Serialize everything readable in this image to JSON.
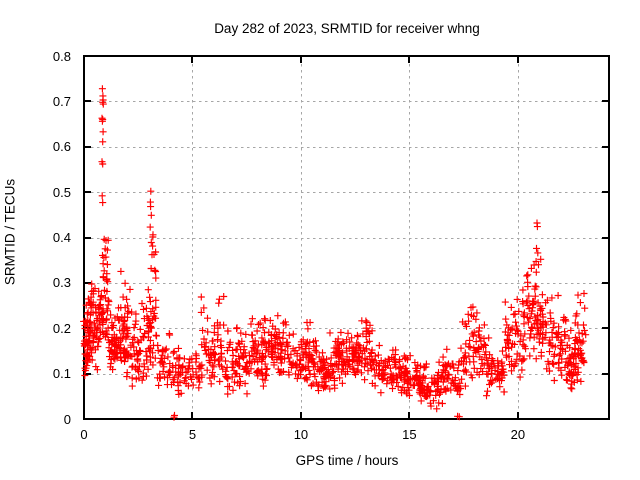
{
  "chart_data": {
    "type": "scatter",
    "title": "Day 282 of 2023, SRMTID for receiver whng",
    "xlabel": "GPS time / hours",
    "ylabel": "SRMTID / TECUs",
    "xlim": [
      0,
      24.2
    ],
    "ylim": [
      0,
      0.8
    ],
    "xticks": [
      0,
      5,
      10,
      15,
      20
    ],
    "xtick_labels": [
      "0",
      "5",
      "10",
      "15",
      "20"
    ],
    "yticks": [
      0,
      0.1,
      0.2,
      0.3,
      0.4,
      0.5,
      0.6,
      0.7,
      0.8
    ],
    "ytick_labels": [
      "0",
      "0.1",
      "0.2",
      "0.3",
      "0.4",
      "0.5",
      "0.6",
      "0.7",
      "0.8"
    ],
    "grid": true,
    "legend": "none",
    "marker": "+",
    "marker_color": "#ff0000",
    "grid_color": "#a6a6a6",
    "axis_color": "#000000",
    "background": "#ffffff",
    "seed": 7,
    "series": [
      {
        "name": "SRMTID",
        "segments": [
          {
            "x0": 0.0,
            "x1": 0.35,
            "n": 65,
            "y_min": 0.08,
            "y_mode": 0.17,
            "y_max": 0.34
          },
          {
            "x0": 0.35,
            "x1": 0.7,
            "n": 40,
            "y_min": 0.1,
            "y_mode": 0.17,
            "y_max": 0.31
          },
          {
            "x0": 0.7,
            "x1": 1.15,
            "n": 55,
            "y_min": 0.13,
            "y_mode": 0.25,
            "y_max": 0.4
          },
          {
            "x0": 1.15,
            "x1": 1.6,
            "n": 45,
            "y_min": 0.08,
            "y_mode": 0.15,
            "y_max": 0.28
          },
          {
            "x0": 1.6,
            "x1": 2.15,
            "n": 55,
            "y_min": 0.08,
            "y_mode": 0.17,
            "y_max": 0.36
          },
          {
            "x0": 2.15,
            "x1": 2.9,
            "n": 55,
            "y_min": 0.07,
            "y_mode": 0.13,
            "y_max": 0.26
          },
          {
            "x0": 2.9,
            "x1": 3.35,
            "n": 45,
            "y_min": 0.1,
            "y_mode": 0.2,
            "y_max": 0.38
          },
          {
            "x0": 3.35,
            "x1": 4.3,
            "n": 45,
            "y_min": 0.06,
            "y_mode": 0.11,
            "y_max": 0.19
          },
          {
            "x0": 4.3,
            "x1": 5.4,
            "n": 55,
            "y_min": 0.05,
            "y_mode": 0.1,
            "y_max": 0.17
          },
          {
            "x0": 5.4,
            "x1": 6.5,
            "n": 65,
            "y_min": 0.06,
            "y_mode": 0.13,
            "y_max": 0.27
          },
          {
            "x0": 6.5,
            "x1": 7.6,
            "n": 70,
            "y_min": 0.05,
            "y_mode": 0.11,
            "y_max": 0.21
          },
          {
            "x0": 7.6,
            "x1": 8.6,
            "n": 75,
            "y_min": 0.07,
            "y_mode": 0.14,
            "y_max": 0.23
          },
          {
            "x0": 8.6,
            "x1": 9.8,
            "n": 80,
            "y_min": 0.09,
            "y_mode": 0.15,
            "y_max": 0.23
          },
          {
            "x0": 9.8,
            "x1": 10.6,
            "n": 60,
            "y_min": 0.06,
            "y_mode": 0.13,
            "y_max": 0.22
          },
          {
            "x0": 10.6,
            "x1": 11.6,
            "n": 70,
            "y_min": 0.05,
            "y_mode": 0.11,
            "y_max": 0.19
          },
          {
            "x0": 11.6,
            "x1": 12.4,
            "n": 65,
            "y_min": 0.07,
            "y_mode": 0.13,
            "y_max": 0.21
          },
          {
            "x0": 12.4,
            "x1": 13.3,
            "n": 75,
            "y_min": 0.08,
            "y_mode": 0.14,
            "y_max": 0.22
          },
          {
            "x0": 13.3,
            "x1": 14.6,
            "n": 75,
            "y_min": 0.05,
            "y_mode": 0.1,
            "y_max": 0.17
          },
          {
            "x0": 14.6,
            "x1": 15.4,
            "n": 55,
            "y_min": 0.04,
            "y_mode": 0.09,
            "y_max": 0.16
          },
          {
            "x0": 15.4,
            "x1": 16.5,
            "n": 70,
            "y_min": 0.02,
            "y_mode": 0.07,
            "y_max": 0.13
          },
          {
            "x0": 16.5,
            "x1": 17.4,
            "n": 55,
            "y_min": 0.04,
            "y_mode": 0.09,
            "y_max": 0.16
          },
          {
            "x0": 17.4,
            "x1": 18.5,
            "n": 65,
            "y_min": 0.07,
            "y_mode": 0.13,
            "y_max": 0.25
          },
          {
            "x0": 18.5,
            "x1": 19.4,
            "n": 55,
            "y_min": 0.03,
            "y_mode": 0.11,
            "y_max": 0.19
          },
          {
            "x0": 19.4,
            "x1": 20.4,
            "n": 65,
            "y_min": 0.08,
            "y_mode": 0.16,
            "y_max": 0.3
          },
          {
            "x0": 20.4,
            "x1": 21.3,
            "n": 75,
            "y_min": 0.12,
            "y_mode": 0.22,
            "y_max": 0.35
          },
          {
            "x0": 21.3,
            "x1": 22.2,
            "n": 60,
            "y_min": 0.08,
            "y_mode": 0.16,
            "y_max": 0.3
          },
          {
            "x0": 22.2,
            "x1": 22.6,
            "n": 35,
            "y_min": 0.04,
            "y_mode": 0.11,
            "y_max": 0.2
          },
          {
            "x0": 22.6,
            "x1": 23.1,
            "n": 50,
            "y_min": 0.08,
            "y_mode": 0.15,
            "y_max": 0.28
          }
        ],
        "outliers": [
          [
            0.85,
            0.728
          ],
          [
            0.87,
            0.712
          ],
          [
            0.88,
            0.703
          ],
          [
            0.86,
            0.698
          ],
          [
            0.89,
            0.694
          ],
          [
            0.83,
            0.663
          ],
          [
            0.86,
            0.66
          ],
          [
            0.85,
            0.656
          ],
          [
            0.88,
            0.633
          ],
          [
            0.86,
            0.611
          ],
          [
            0.83,
            0.567
          ],
          [
            0.86,
            0.562
          ],
          [
            0.84,
            0.492
          ],
          [
            0.86,
            0.477
          ],
          [
            3.08,
            0.502
          ],
          [
            3.06,
            0.478
          ],
          [
            3.07,
            0.468
          ],
          [
            3.1,
            0.449
          ],
          [
            3.05,
            0.423
          ],
          [
            3.18,
            0.406
          ],
          [
            3.17,
            0.401
          ],
          [
            3.1,
            0.389
          ],
          [
            3.16,
            0.381
          ],
          [
            3.3,
            0.368
          ],
          [
            4.15,
            0.004
          ],
          [
            4.17,
            0.008
          ],
          [
            17.22,
            0.006
          ],
          [
            17.3,
            0.005
          ],
          [
            20.88,
            0.432
          ],
          [
            20.9,
            0.424
          ],
          [
            20.86,
            0.376
          ],
          [
            20.92,
            0.366
          ],
          [
            20.84,
            0.347
          ],
          [
            20.95,
            0.34
          ],
          [
            21.05,
            0.352
          ]
        ]
      }
    ]
  }
}
